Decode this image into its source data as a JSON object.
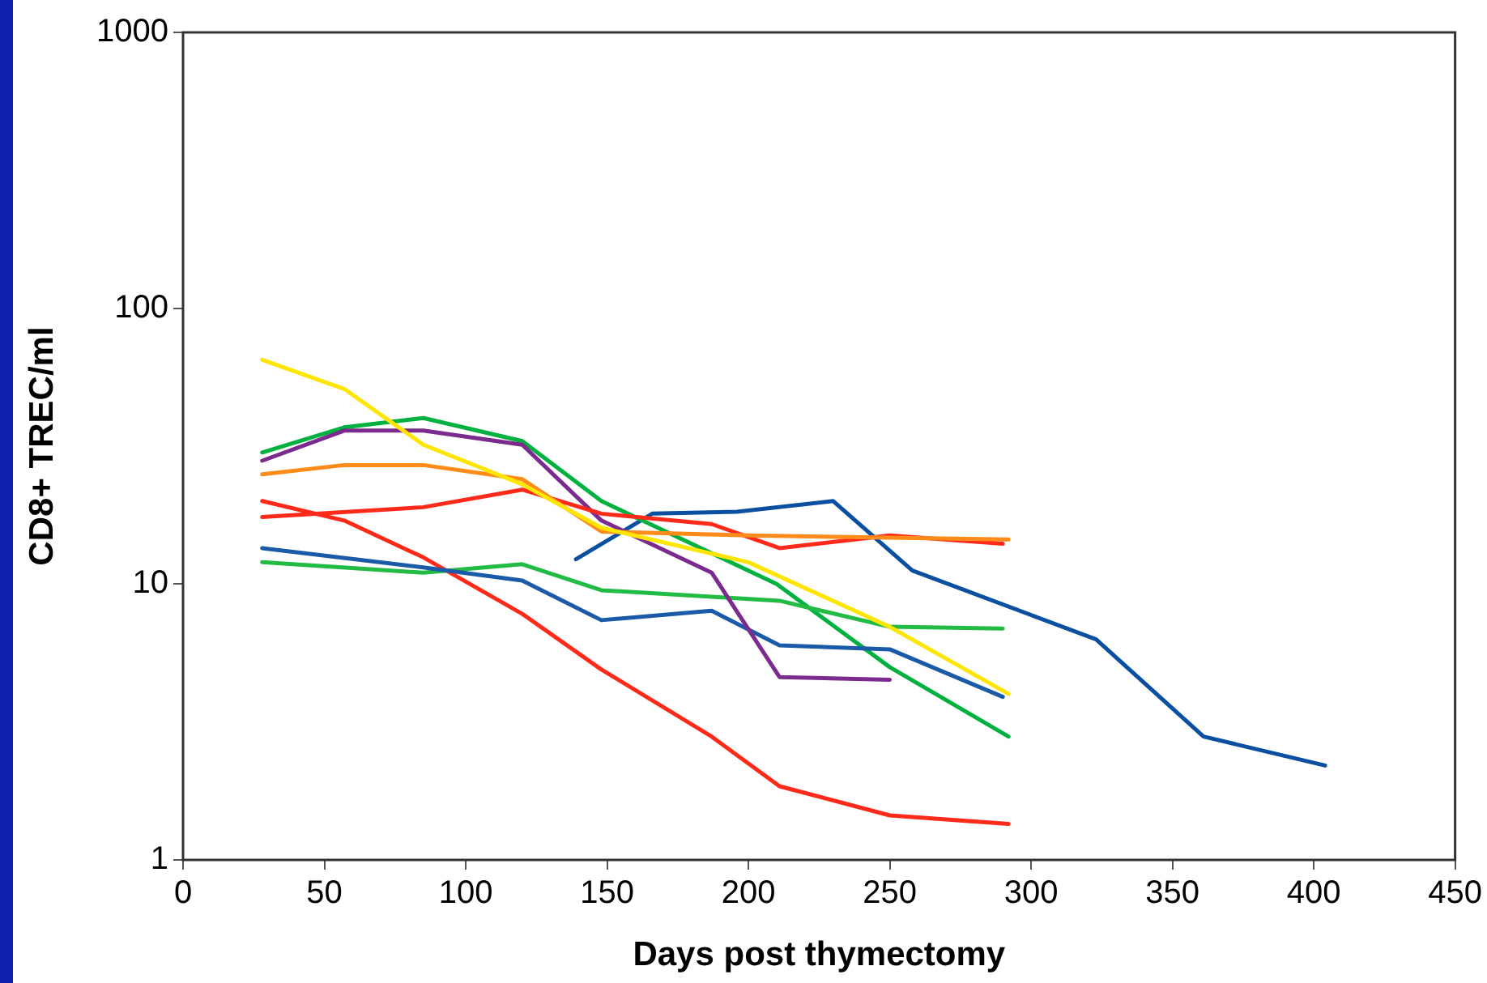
{
  "chart_data": {
    "type": "line",
    "xlabel": "Days post thymectomy",
    "ylabel": "CD8+ TREC/ml",
    "log": "y",
    "grid": false,
    "legend": false,
    "marker": "none",
    "line_style": "solid",
    "xlim": [
      0,
      450
    ],
    "xticks": [
      0,
      50,
      100,
      150,
      200,
      250,
      300,
      350,
      400,
      450
    ],
    "ylim": [
      1,
      1000
    ],
    "yticks": [
      1,
      10,
      100,
      1000
    ],
    "series": [
      {
        "color": "#ffe600",
        "x": [
          28,
          57,
          85,
          120,
          148,
          200,
          250,
          292
        ],
        "values": [
          65,
          51,
          32,
          23,
          16,
          12,
          7,
          4
        ]
      },
      {
        "color": "#ff8c1a",
        "x": [
          28,
          57,
          85,
          120,
          148,
          200,
          292
        ],
        "values": [
          25,
          27,
          27,
          24,
          15.5,
          15,
          14.5
        ]
      },
      {
        "color": "#ff2a1a",
        "x": [
          28,
          85,
          120,
          148,
          187,
          211,
          250,
          290
        ],
        "values": [
          17.5,
          19,
          22,
          18,
          16.5,
          13.5,
          15,
          14
        ]
      },
      {
        "color": "#7b2a8e",
        "x": [
          28,
          57,
          85,
          120,
          148,
          187,
          211,
          250
        ],
        "values": [
          28,
          36,
          36,
          32,
          17,
          11,
          4.6,
          4.5
        ]
      },
      {
        "color": "#1a5aa8",
        "x": [
          28,
          85,
          120,
          148,
          187,
          211,
          250,
          290
        ],
        "values": [
          13.5,
          11.5,
          10.3,
          7.4,
          8,
          6,
          5.8,
          3.9
        ]
      },
      {
        "color": "#22bb44",
        "x": [
          28,
          85,
          120,
          148,
          211,
          250,
          290
        ],
        "values": [
          12,
          11,
          11.8,
          9.5,
          8.7,
          7,
          6.9
        ]
      },
      {
        "color": "#00b140",
        "x": [
          28,
          57,
          85,
          120,
          148,
          210,
          250,
          292
        ],
        "values": [
          30,
          37,
          40,
          33,
          20,
          10,
          5,
          2.8
        ]
      },
      {
        "color": "#ff2a1a",
        "x": [
          28,
          57,
          85,
          120,
          148,
          187,
          211,
          250,
          292
        ],
        "values": [
          20,
          17,
          12.5,
          7.8,
          4.9,
          2.8,
          1.85,
          1.45,
          1.35
        ]
      },
      {
        "color": "#0a4fa0",
        "x": [
          139,
          166,
          196,
          230,
          258,
          323,
          361,
          404
        ],
        "values": [
          12.3,
          18,
          18.3,
          20,
          11.2,
          6.3,
          2.8,
          2.2
        ]
      }
    ]
  }
}
